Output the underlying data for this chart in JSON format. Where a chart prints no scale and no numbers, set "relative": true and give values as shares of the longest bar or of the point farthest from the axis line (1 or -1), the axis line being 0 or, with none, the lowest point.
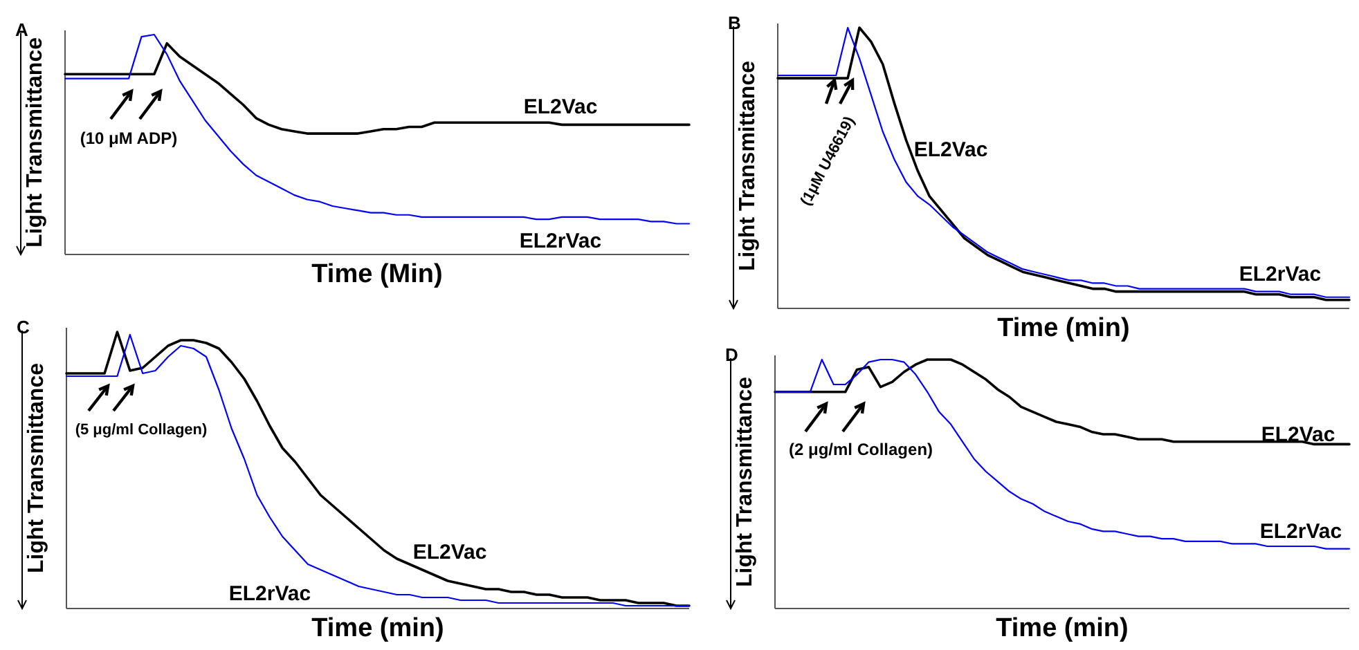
{
  "chart_data": [
    {
      "type": "line",
      "title": "A",
      "xlabel": "Time (Min)",
      "ylabel": "Light Transmittance",
      "relative": true,
      "annotations": [
        "(10 μM ADP)"
      ],
      "categories": [
        null,
        null,
        null,
        null,
        null,
        null,
        null,
        null,
        null,
        null,
        null,
        null,
        null,
        null,
        null,
        null,
        null,
        null,
        null,
        null,
        null,
        null,
        null,
        null,
        null,
        null,
        null,
        null,
        null,
        null,
        null,
        null,
        null,
        null,
        null,
        null,
        null,
        null,
        null,
        null,
        null,
        null,
        null,
        null,
        null,
        null,
        null,
        null,
        null,
        null
      ],
      "series": [
        {
          "name": "EL2Vac",
          "color": "#000000",
          "values": [
            0.82,
            0.82,
            0.82,
            0.82,
            0.82,
            0.82,
            0.82,
            0.82,
            0.96,
            0.9,
            0.86,
            0.82,
            0.78,
            0.73,
            0.68,
            0.62,
            0.59,
            0.57,
            0.56,
            0.55,
            0.55,
            0.55,
            0.55,
            0.55,
            0.56,
            0.57,
            0.57,
            0.58,
            0.58,
            0.6,
            0.6,
            0.6,
            0.6,
            0.6,
            0.6,
            0.6,
            0.6,
            0.6,
            0.6,
            0.59,
            0.59,
            0.59,
            0.59,
            0.59,
            0.59,
            0.59,
            0.59,
            0.59,
            0.59,
            0.59
          ]
        },
        {
          "name": "EL2rVac",
          "color": "#0000ff",
          "values": [
            0.8,
            0.8,
            0.8,
            0.8,
            0.8,
            0.8,
            0.99,
            1.0,
            0.91,
            0.79,
            0.7,
            0.61,
            0.54,
            0.47,
            0.41,
            0.36,
            0.33,
            0.3,
            0.27,
            0.25,
            0.24,
            0.22,
            0.21,
            0.2,
            0.19,
            0.19,
            0.18,
            0.18,
            0.17,
            0.17,
            0.17,
            0.17,
            0.17,
            0.17,
            0.17,
            0.17,
            0.17,
            0.16,
            0.16,
            0.17,
            0.17,
            0.17,
            0.16,
            0.16,
            0.16,
            0.16,
            0.15,
            0.15,
            0.14,
            0.14
          ]
        }
      ]
    },
    {
      "type": "line",
      "title": "B",
      "xlabel": "Time (min)",
      "ylabel": "Light Transmittance",
      "relative": true,
      "annotations": [
        "(1μM U46619)"
      ],
      "categories": [
        null,
        null,
        null,
        null,
        null,
        null,
        null,
        null,
        null,
        null,
        null,
        null,
        null,
        null,
        null,
        null,
        null,
        null,
        null,
        null,
        null,
        null,
        null,
        null,
        null,
        null,
        null,
        null,
        null,
        null,
        null,
        null,
        null,
        null,
        null,
        null,
        null,
        null,
        null,
        null,
        null,
        null,
        null,
        null,
        null,
        null,
        null,
        null,
        null,
        null
      ],
      "series": [
        {
          "name": "EL2Vac",
          "color": "#000000",
          "values": [
            0.82,
            0.82,
            0.82,
            0.82,
            0.82,
            0.82,
            0.82,
            1.0,
            0.95,
            0.87,
            0.73,
            0.6,
            0.49,
            0.4,
            0.35,
            0.3,
            0.25,
            0.22,
            0.19,
            0.17,
            0.15,
            0.13,
            0.12,
            0.11,
            0.1,
            0.09,
            0.08,
            0.07,
            0.07,
            0.06,
            0.06,
            0.06,
            0.06,
            0.06,
            0.06,
            0.06,
            0.06,
            0.06,
            0.06,
            0.06,
            0.06,
            0.05,
            0.05,
            0.05,
            0.04,
            0.04,
            0.04,
            0.03,
            0.03,
            0.03
          ]
        },
        {
          "name": "EL2rVac",
          "color": "#0000ff",
          "values": [
            0.83,
            0.83,
            0.83,
            0.83,
            0.83,
            0.83,
            1.0,
            0.89,
            0.76,
            0.63,
            0.53,
            0.45,
            0.4,
            0.37,
            0.33,
            0.29,
            0.26,
            0.23,
            0.2,
            0.18,
            0.16,
            0.14,
            0.13,
            0.12,
            0.11,
            0.1,
            0.1,
            0.09,
            0.09,
            0.08,
            0.08,
            0.07,
            0.07,
            0.07,
            0.07,
            0.07,
            0.07,
            0.07,
            0.07,
            0.07,
            0.07,
            0.06,
            0.06,
            0.06,
            0.05,
            0.05,
            0.05,
            0.04,
            0.04,
            0.04
          ]
        }
      ]
    },
    {
      "type": "line",
      "title": "C",
      "xlabel": "Time (min)",
      "ylabel": "Light Transmittance",
      "relative": true,
      "annotations": [
        "(5 μg/ml Collagen)"
      ],
      "categories": [
        null,
        null,
        null,
        null,
        null,
        null,
        null,
        null,
        null,
        null,
        null,
        null,
        null,
        null,
        null,
        null,
        null,
        null,
        null,
        null,
        null,
        null,
        null,
        null,
        null,
        null,
        null,
        null,
        null,
        null,
        null,
        null,
        null,
        null,
        null,
        null,
        null,
        null,
        null,
        null,
        null,
        null,
        null,
        null,
        null,
        null,
        null,
        null,
        null,
        null
      ],
      "series": [
        {
          "name": "EL2Vac",
          "color": "#000000",
          "values": [
            0.85,
            0.85,
            0.85,
            0.85,
            1.0,
            0.86,
            0.87,
            0.91,
            0.95,
            0.97,
            0.97,
            0.96,
            0.94,
            0.89,
            0.83,
            0.75,
            0.66,
            0.58,
            0.53,
            0.47,
            0.41,
            0.37,
            0.33,
            0.29,
            0.25,
            0.21,
            0.18,
            0.16,
            0.14,
            0.12,
            0.1,
            0.09,
            0.08,
            0.07,
            0.07,
            0.06,
            0.06,
            0.05,
            0.05,
            0.04,
            0.04,
            0.04,
            0.03,
            0.03,
            0.03,
            0.02,
            0.02,
            0.02,
            0.01,
            0.01
          ]
        },
        {
          "name": "EL2rVac",
          "color": "#0000ff",
          "values": [
            0.84,
            0.84,
            0.84,
            0.84,
            0.84,
            0.99,
            0.85,
            0.86,
            0.91,
            0.95,
            0.94,
            0.91,
            0.79,
            0.65,
            0.54,
            0.41,
            0.33,
            0.26,
            0.21,
            0.16,
            0.14,
            0.12,
            0.1,
            0.08,
            0.07,
            0.06,
            0.05,
            0.05,
            0.04,
            0.04,
            0.04,
            0.03,
            0.03,
            0.03,
            0.02,
            0.02,
            0.02,
            0.02,
            0.02,
            0.02,
            0.02,
            0.02,
            0.02,
            0.02,
            0.01,
            0.01,
            0.01,
            0.01,
            0.01,
            0.01
          ]
        }
      ]
    },
    {
      "type": "line",
      "title": "D",
      "xlabel": "Time (min)",
      "ylabel": "Light Transmittance",
      "relative": true,
      "annotations": [
        "(2 μg/ml Collagen)"
      ],
      "categories": [
        null,
        null,
        null,
        null,
        null,
        null,
        null,
        null,
        null,
        null,
        null,
        null,
        null,
        null,
        null,
        null,
        null,
        null,
        null,
        null,
        null,
        null,
        null,
        null,
        null,
        null,
        null,
        null,
        null,
        null,
        null,
        null,
        null,
        null,
        null,
        null,
        null,
        null,
        null,
        null,
        null,
        null,
        null,
        null,
        null,
        null,
        null,
        null,
        null,
        null
      ],
      "series": [
        {
          "name": "EL2Vac",
          "color": "#000000",
          "values": [
            0.87,
            0.87,
            0.87,
            0.87,
            0.87,
            0.87,
            0.87,
            0.96,
            0.97,
            0.89,
            0.91,
            0.95,
            0.98,
            1.0,
            1.0,
            1.0,
            0.98,
            0.95,
            0.92,
            0.88,
            0.85,
            0.81,
            0.79,
            0.77,
            0.75,
            0.74,
            0.73,
            0.71,
            0.7,
            0.7,
            0.69,
            0.68,
            0.68,
            0.68,
            0.67,
            0.67,
            0.67,
            0.67,
            0.67,
            0.67,
            0.67,
            0.67,
            0.67,
            0.67,
            0.67,
            0.67,
            0.66,
            0.66,
            0.66,
            0.66
          ]
        },
        {
          "name": "EL2rVac",
          "color": "#0000ff",
          "values": [
            0.87,
            0.87,
            0.87,
            0.87,
            1.0,
            0.9,
            0.9,
            0.94,
            0.99,
            1.0,
            1.0,
            0.99,
            0.94,
            0.87,
            0.79,
            0.74,
            0.67,
            0.6,
            0.55,
            0.51,
            0.47,
            0.44,
            0.42,
            0.39,
            0.37,
            0.35,
            0.34,
            0.32,
            0.31,
            0.31,
            0.3,
            0.29,
            0.29,
            0.28,
            0.28,
            0.27,
            0.27,
            0.27,
            0.27,
            0.26,
            0.26,
            0.26,
            0.25,
            0.25,
            0.25,
            0.25,
            0.25,
            0.24,
            0.24,
            0.24
          ]
        }
      ]
    }
  ]
}
